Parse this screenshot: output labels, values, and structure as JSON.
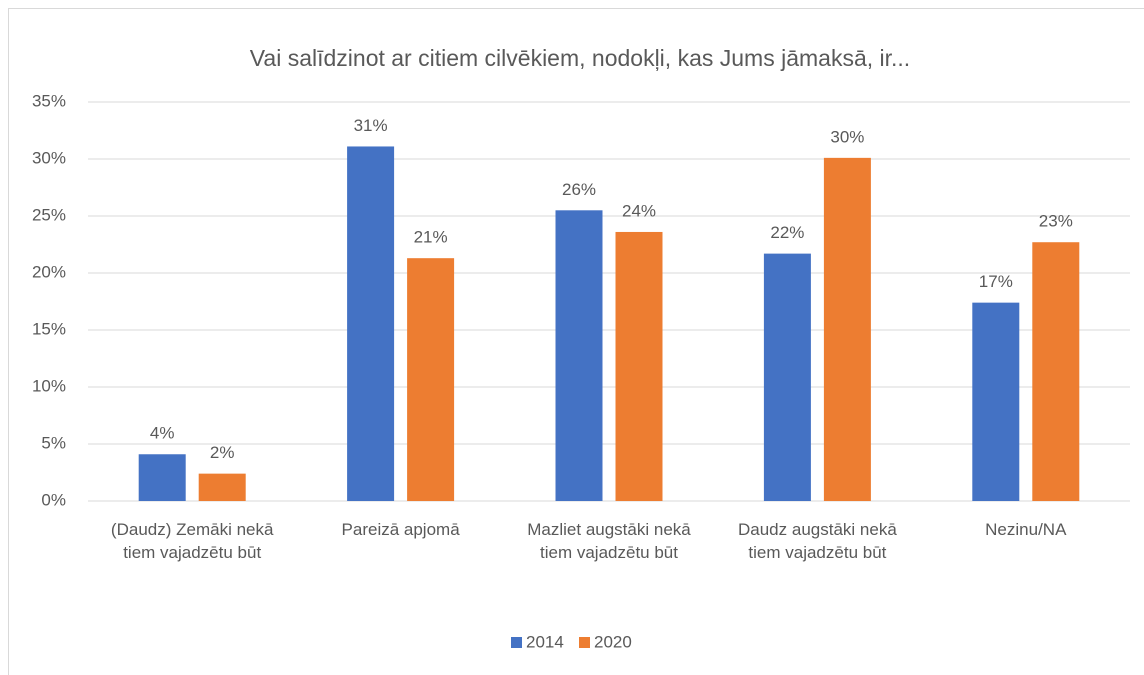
{
  "chart_data": {
    "type": "bar",
    "title": "Vai salīdzinot ar citiem cilvēkiem, nodokļi, kas Jums jāmaksā, ir...",
    "categories": [
      "(Daudz) Zemāki nekā tiem vajadzētu būt",
      "Pareizā apjomā",
      "Mazliet augstāki nekā tiem vajadzētu būt",
      "Daudz augstāki nekā tiem vajadzētu būt",
      "Nezinu/NA"
    ],
    "series": [
      {
        "name": "2014",
        "color": "#4472c4",
        "values": [
          4.1,
          31.1,
          25.5,
          21.7,
          17.4
        ],
        "value_labels": [
          "4%",
          "31%",
          "26%",
          "22%",
          "17%"
        ]
      },
      {
        "name": "2020",
        "color": "#ed7d31",
        "values": [
          2.4,
          21.3,
          23.6,
          30.1,
          22.7
        ],
        "value_labels": [
          "2%",
          "21%",
          "24%",
          "30%",
          "23%"
        ]
      }
    ],
    "ylim": [
      0,
      35
    ],
    "yticks": [
      {
        "value": 0,
        "label": "0%"
      },
      {
        "value": 5,
        "label": "5%"
      },
      {
        "value": 10,
        "label": "10%"
      },
      {
        "value": 15,
        "label": "15%"
      },
      {
        "value": 20,
        "label": "20%"
      },
      {
        "value": 25,
        "label": "25%"
      },
      {
        "value": 30,
        "label": "30%"
      },
      {
        "value": 35,
        "label": "35%"
      }
    ],
    "grid": true,
    "legend": "bottom"
  }
}
